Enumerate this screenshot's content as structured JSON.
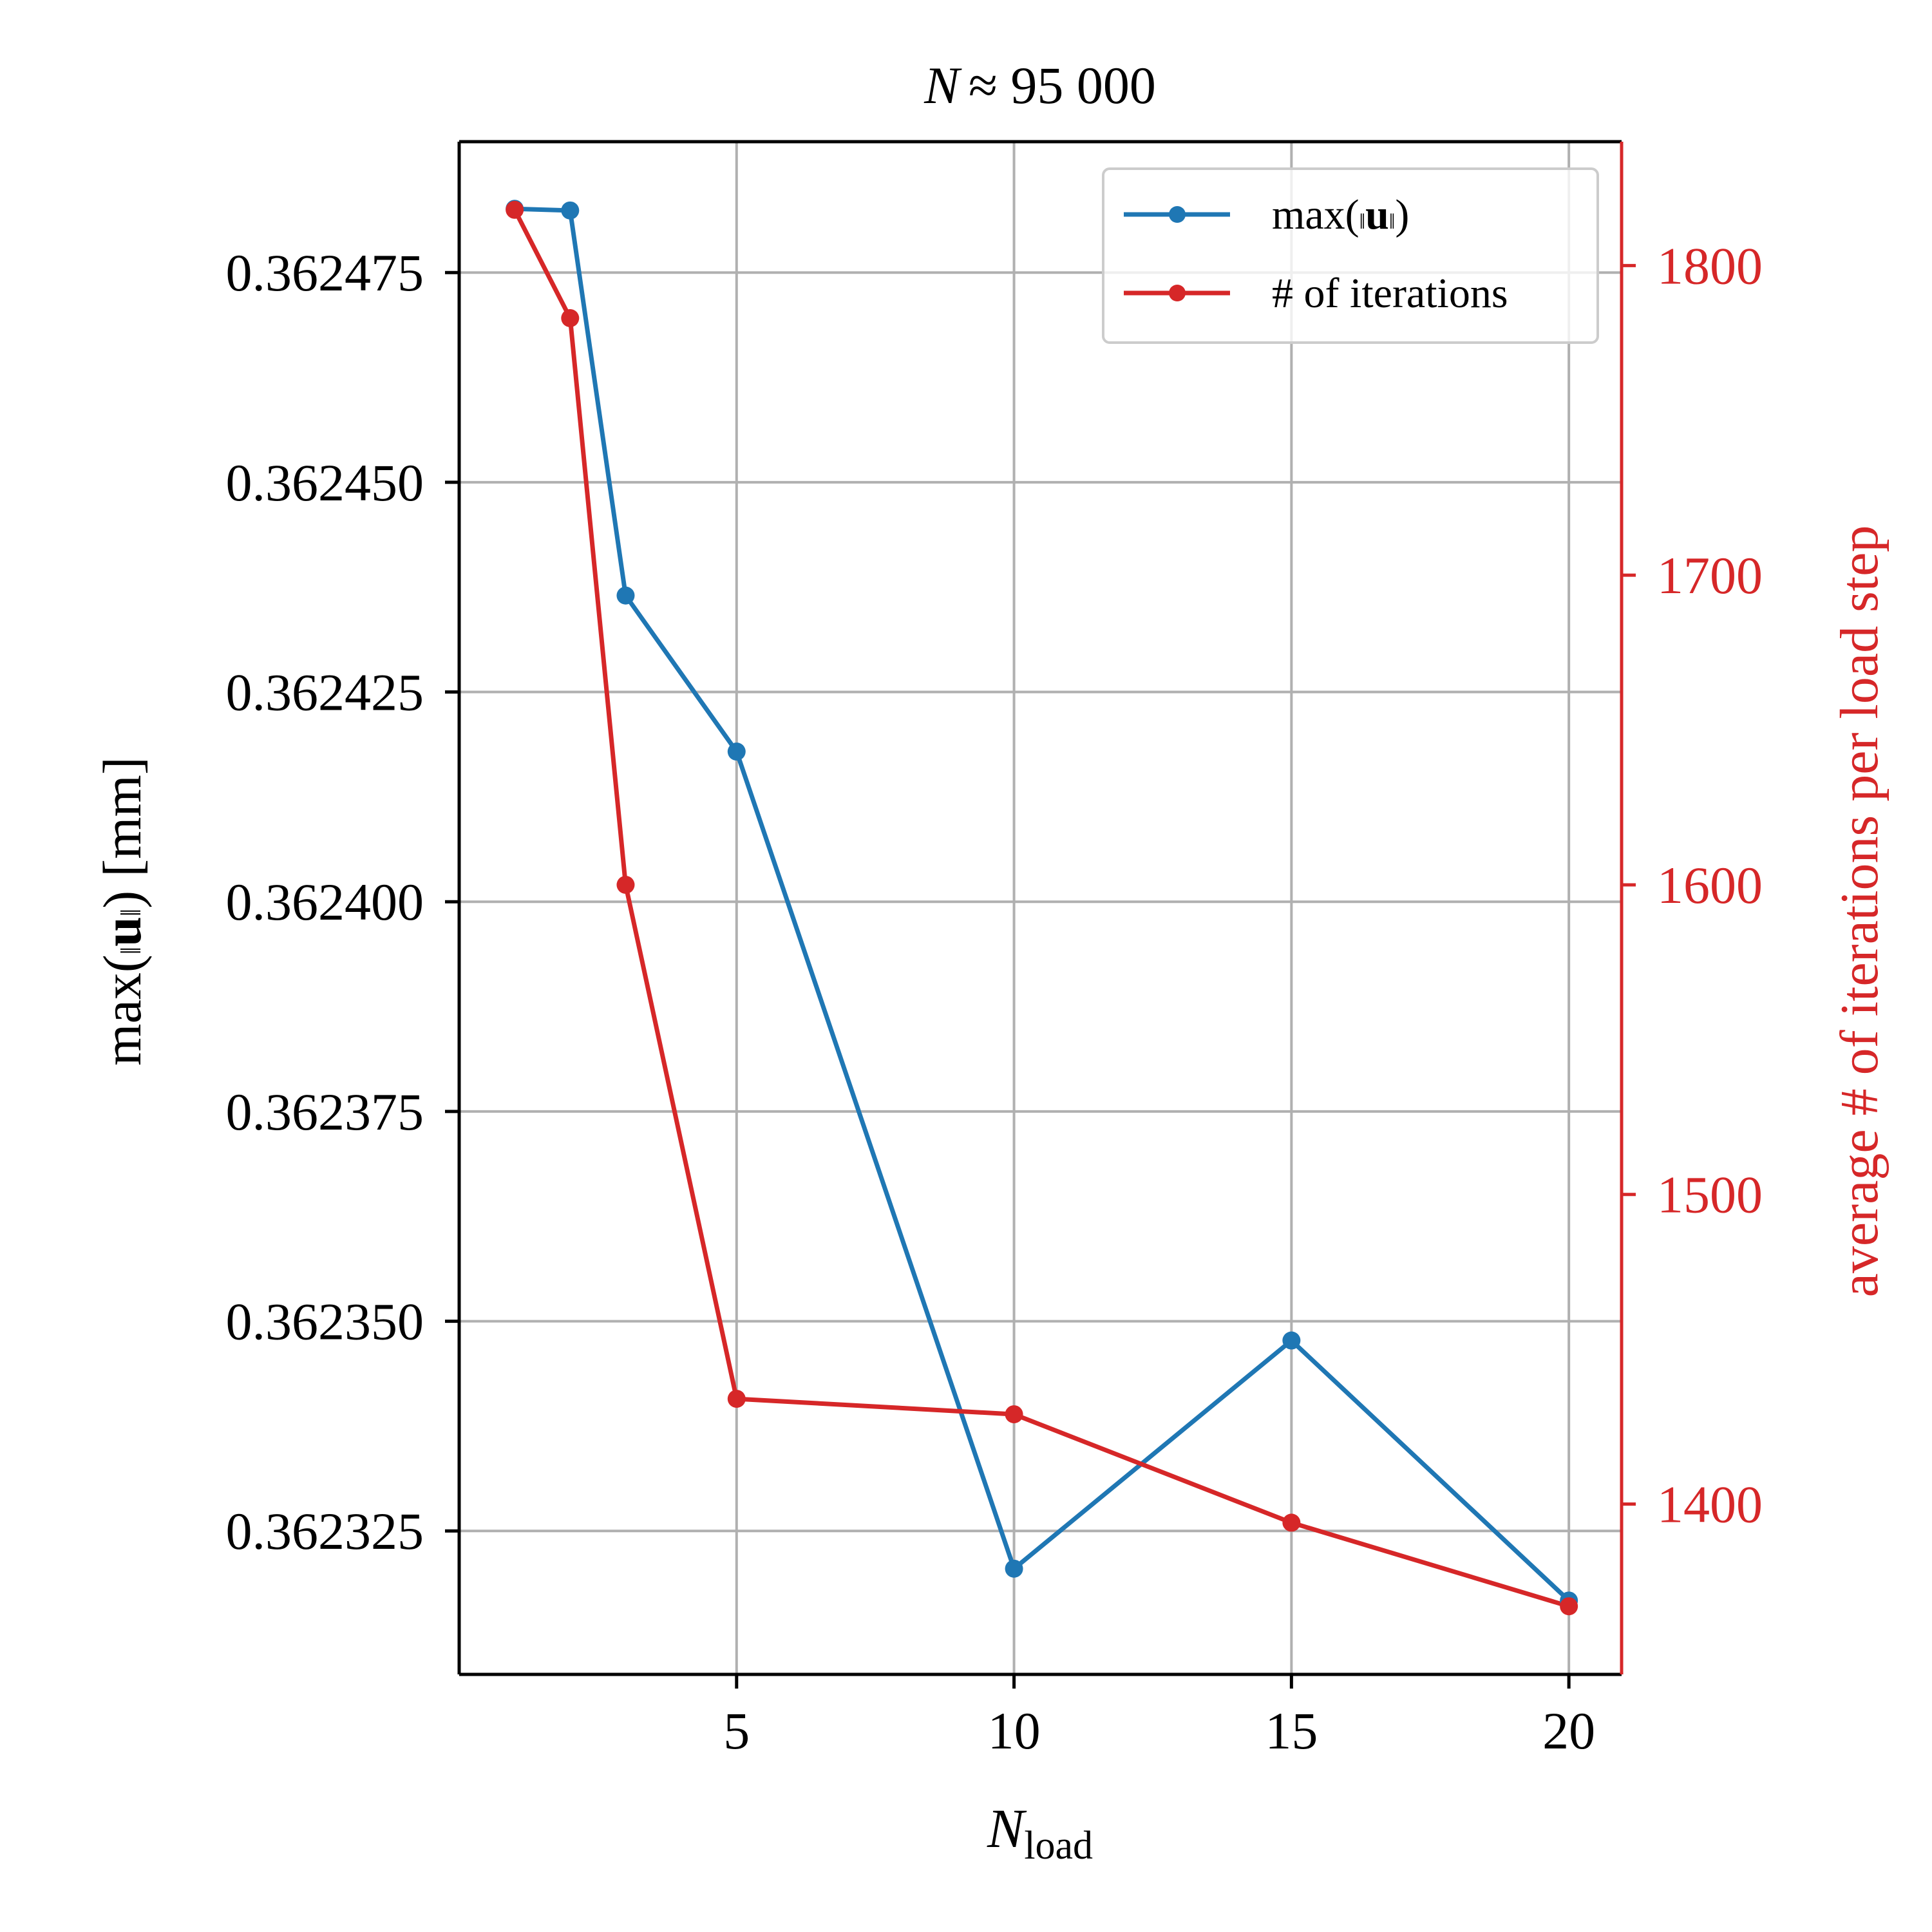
{
  "chart_data": {
    "type": "line",
    "title": "N ≈ 95 000",
    "title_var": "N",
    "title_rest": "≈ 95 000",
    "xlabel": "N_load",
    "xlabel_main": "N",
    "xlabel_sub": "load",
    "ylabel": "max(‖u‖) [mm]",
    "ylabel_prefix": "max(",
    "ylabel_vec": "u",
    "ylabel_suffix": ") [mm]",
    "y2label": "average # of iterations per load step",
    "x": [
      1,
      2,
      3,
      5,
      10,
      15,
      20
    ],
    "xlim": [
      0,
      20.95
    ],
    "xticks": [
      5,
      10,
      15,
      20
    ],
    "xtick_labels": [
      "5",
      "10",
      "15",
      "20"
    ],
    "ylim": [
      0.3623079,
      0.3624906
    ],
    "yticks": [
      0.362325,
      0.36235,
      0.362375,
      0.3624,
      0.362425,
      0.36245,
      0.362475
    ],
    "ytick_labels": [
      "0.362325",
      "0.362350",
      "0.362375",
      "0.362400",
      "0.362425",
      "0.362450",
      "0.362475"
    ],
    "y2lim": [
      1345,
      1840
    ],
    "y2ticks": [
      1400,
      1500,
      1600,
      1700,
      1800
    ],
    "y2tick_labels": [
      "1400",
      "1500",
      "1600",
      "1700",
      "1800"
    ],
    "grid": true,
    "legend_position": "top-right",
    "series": [
      {
        "name": "max(‖u‖)",
        "legend_prefix": "max(",
        "legend_vec": "u",
        "legend_suffix": ")",
        "axis": "left",
        "color": "#1f77b4",
        "values": [
          0.3624826,
          0.3624824,
          0.3624365,
          0.3624179,
          0.3623205,
          0.3623477,
          0.3623167
        ]
      },
      {
        "name": "# of iterations",
        "legend_label": "# of iterations",
        "axis": "right",
        "color": "#d62728",
        "values": [
          1818,
          1783,
          1600,
          1434,
          1429,
          1394,
          1367
        ]
      }
    ]
  }
}
